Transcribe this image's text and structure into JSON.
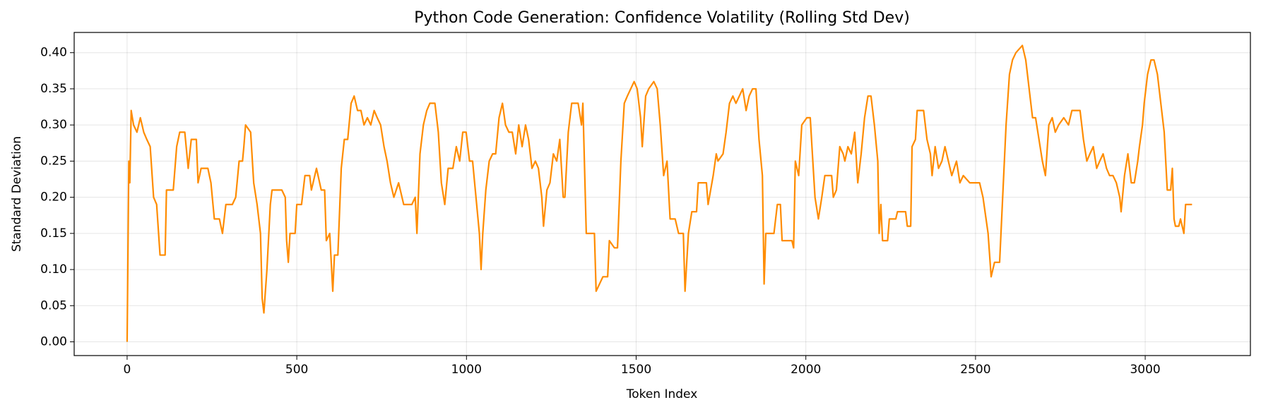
{
  "chart_data": {
    "type": "line",
    "title": "Python Code Generation: Confidence Volatility (Rolling Std Dev)",
    "x_label": "Token Index",
    "y_label": "Standard Deviation",
    "color": "#ff8c00",
    "grid": true,
    "xlim": [
      -156,
      3310
    ],
    "ylim": [
      -0.019,
      0.428
    ],
    "xticks": [
      0,
      500,
      1000,
      1500,
      2000,
      2500,
      3000
    ],
    "yticks": [
      {
        "value": 0,
        "label": "0.00"
      },
      {
        "value": 0.05,
        "label": "0.05"
      },
      {
        "value": 0.1,
        "label": "0.10"
      },
      {
        "value": 0.15,
        "label": "0.15"
      },
      {
        "value": 0.2,
        "label": "0.20"
      },
      {
        "value": 0.25,
        "label": "0.25"
      },
      {
        "value": 0.3,
        "label": "0.30"
      },
      {
        "value": 0.35,
        "label": "0.35"
      },
      {
        "value": 0.4,
        "label": "0.40"
      }
    ],
    "x": [
      0,
      5,
      8,
      12,
      19,
      29,
      39,
      49,
      58,
      68,
      78,
      87,
      97,
      112,
      116,
      136,
      146,
      155,
      170,
      180,
      189,
      204,
      209,
      218,
      238,
      247,
      257,
      272,
      281,
      291,
      310,
      320,
      330,
      340,
      344,
      349,
      364,
      373,
      383,
      393,
      398,
      403,
      412,
      422,
      427,
      456,
      466,
      470,
      475,
      480,
      495,
      500,
      514,
      524,
      538,
      543,
      558,
      572,
      582,
      587,
      597,
      606,
      611,
      621,
      631,
      640,
      650,
      660,
      669,
      679,
      689,
      698,
      708,
      718,
      728,
      737,
      747,
      757,
      766,
      776,
      786,
      800,
      810,
      815,
      829,
      839,
      849,
      854,
      863,
      873,
      883,
      892,
      907,
      917,
      926,
      936,
      946,
      960,
      970,
      980,
      989,
      999,
      1009,
      1018,
      1028,
      1038,
      1043,
      1048,
      1057,
      1067,
      1077,
      1086,
      1096,
      1106,
      1115,
      1125,
      1135,
      1145,
      1154,
      1164,
      1174,
      1183,
      1193,
      1203,
      1212,
      1222,
      1227,
      1237,
      1246,
      1256,
      1266,
      1275,
      1285,
      1290,
      1300,
      1310,
      1329,
      1339,
      1343,
      1353,
      1377,
      1382,
      1392,
      1402,
      1416,
      1421,
      1436,
      1445,
      1455,
      1465,
      1474,
      1484,
      1494,
      1503,
      1513,
      1518,
      1528,
      1537,
      1552,
      1562,
      1571,
      1581,
      1591,
      1600,
      1615,
      1625,
      1639,
      1644,
      1654,
      1664,
      1678,
      1683,
      1707,
      1712,
      1727,
      1736,
      1741,
      1756,
      1765,
      1775,
      1785,
      1794,
      1804,
      1814,
      1824,
      1833,
      1843,
      1853,
      1862,
      1872,
      1877,
      1882,
      1906,
      1916,
      1925,
      1930,
      1959,
      1964,
      1969,
      1979,
      1988,
      2003,
      2013,
      2018,
      2027,
      2037,
      2047,
      2056,
      2076,
      2081,
      2090,
      2100,
      2110,
      2115,
      2124,
      2134,
      2144,
      2153,
      2163,
      2173,
      2183,
      2192,
      2202,
      2212,
      2216,
      2221,
      2226,
      2241,
      2246,
      2265,
      2270,
      2294,
      2299,
      2309,
      2313,
      2323,
      2328,
      2347,
      2357,
      2367,
      2372,
      2381,
      2391,
      2401,
      2410,
      2420,
      2430,
      2444,
      2454,
      2464,
      2483,
      2512,
      2522,
      2537,
      2546,
      2556,
      2571,
      2580,
      2590,
      2600,
      2609,
      2619,
      2638,
      2648,
      2658,
      2668,
      2677,
      2687,
      2697,
      2706,
      2716,
      2726,
      2735,
      2745,
      2760,
      2774,
      2784,
      2794,
      2808,
      2818,
      2828,
      2837,
      2847,
      2857,
      2866,
      2876,
      2886,
      2895,
      2905,
      2915,
      2925,
      2929,
      2939,
      2949,
      2959,
      2968,
      2978,
      2983,
      2992,
      2997,
      3007,
      3017,
      3026,
      3036,
      3046,
      3056,
      3065,
      3075,
      3080,
      3085,
      3089,
      3099,
      3104,
      3114,
      3119,
      3128,
      3138
    ],
    "values": [
      0.0,
      0.25,
      0.22,
      0.32,
      0.3,
      0.29,
      0.31,
      0.29,
      0.28,
      0.27,
      0.2,
      0.19,
      0.12,
      0.12,
      0.21,
      0.21,
      0.27,
      0.29,
      0.29,
      0.24,
      0.28,
      0.28,
      0.22,
      0.24,
      0.24,
      0.22,
      0.17,
      0.17,
      0.15,
      0.19,
      0.19,
      0.2,
      0.25,
      0.25,
      0.27,
      0.3,
      0.29,
      0.22,
      0.19,
      0.15,
      0.06,
      0.04,
      0.1,
      0.19,
      0.21,
      0.21,
      0.2,
      0.14,
      0.11,
      0.15,
      0.15,
      0.19,
      0.19,
      0.23,
      0.23,
      0.21,
      0.24,
      0.21,
      0.21,
      0.14,
      0.15,
      0.07,
      0.12,
      0.12,
      0.24,
      0.28,
      0.28,
      0.33,
      0.34,
      0.32,
      0.32,
      0.3,
      0.31,
      0.3,
      0.32,
      0.31,
      0.3,
      0.27,
      0.25,
      0.22,
      0.2,
      0.22,
      0.2,
      0.19,
      0.19,
      0.19,
      0.2,
      0.15,
      0.26,
      0.3,
      0.32,
      0.33,
      0.33,
      0.29,
      0.22,
      0.19,
      0.24,
      0.24,
      0.27,
      0.25,
      0.29,
      0.29,
      0.25,
      0.25,
      0.2,
      0.15,
      0.1,
      0.15,
      0.21,
      0.25,
      0.26,
      0.26,
      0.31,
      0.33,
      0.3,
      0.29,
      0.29,
      0.26,
      0.3,
      0.27,
      0.3,
      0.28,
      0.24,
      0.25,
      0.24,
      0.2,
      0.16,
      0.21,
      0.22,
      0.26,
      0.25,
      0.28,
      0.2,
      0.2,
      0.29,
      0.33,
      0.33,
      0.3,
      0.33,
      0.15,
      0.15,
      0.07,
      0.08,
      0.09,
      0.09,
      0.14,
      0.13,
      0.13,
      0.25,
      0.33,
      0.34,
      0.35,
      0.36,
      0.35,
      0.31,
      0.27,
      0.34,
      0.35,
      0.36,
      0.35,
      0.3,
      0.23,
      0.25,
      0.17,
      0.17,
      0.15,
      0.15,
      0.07,
      0.15,
      0.18,
      0.18,
      0.22,
      0.22,
      0.19,
      0.23,
      0.26,
      0.25,
      0.26,
      0.29,
      0.33,
      0.34,
      0.33,
      0.34,
      0.35,
      0.32,
      0.34,
      0.35,
      0.35,
      0.28,
      0.23,
      0.08,
      0.15,
      0.15,
      0.19,
      0.19,
      0.14,
      0.14,
      0.13,
      0.25,
      0.23,
      0.3,
      0.31,
      0.31,
      0.27,
      0.2,
      0.17,
      0.2,
      0.23,
      0.23,
      0.2,
      0.21,
      0.27,
      0.26,
      0.25,
      0.27,
      0.26,
      0.29,
      0.22,
      0.26,
      0.31,
      0.34,
      0.34,
      0.3,
      0.25,
      0.15,
      0.19,
      0.14,
      0.14,
      0.17,
      0.17,
      0.18,
      0.18,
      0.16,
      0.16,
      0.27,
      0.28,
      0.32,
      0.32,
      0.28,
      0.26,
      0.23,
      0.27,
      0.24,
      0.25,
      0.27,
      0.25,
      0.23,
      0.25,
      0.22,
      0.23,
      0.22,
      0.22,
      0.2,
      0.15,
      0.09,
      0.11,
      0.11,
      0.2,
      0.3,
      0.37,
      0.39,
      0.4,
      0.41,
      0.39,
      0.35,
      0.31,
      0.31,
      0.28,
      0.25,
      0.23,
      0.3,
      0.31,
      0.29,
      0.3,
      0.31,
      0.3,
      0.32,
      0.32,
      0.32,
      0.28,
      0.25,
      0.26,
      0.27,
      0.24,
      0.25,
      0.26,
      0.24,
      0.23,
      0.23,
      0.22,
      0.2,
      0.18,
      0.23,
      0.26,
      0.22,
      0.22,
      0.25,
      0.27,
      0.3,
      0.33,
      0.37,
      0.39,
      0.39,
      0.37,
      0.33,
      0.29,
      0.21,
      0.21,
      0.24,
      0.17,
      0.16,
      0.16,
      0.17,
      0.15,
      0.19,
      0.19,
      0.19
    ]
  }
}
